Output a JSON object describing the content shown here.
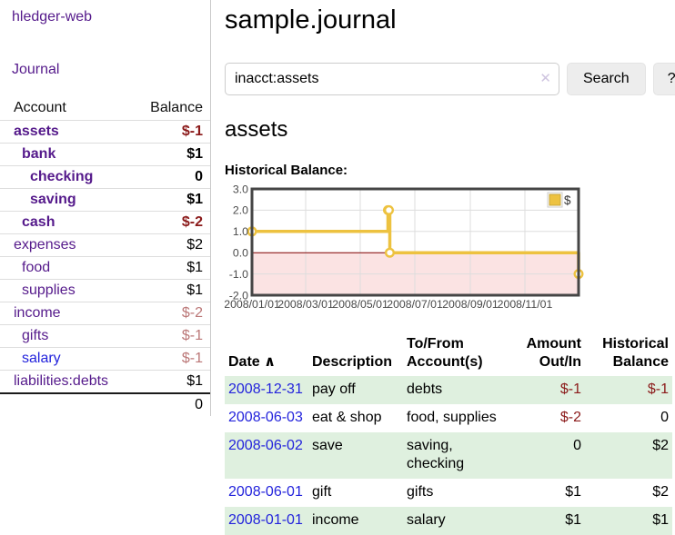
{
  "app": {
    "brand": "hledger-web",
    "nav": {
      "journal": "Journal"
    }
  },
  "colors": {
    "purple_link": "#551A8B",
    "blue_link": "#2323DC",
    "negative_dark": "#8B1A1A",
    "negative_light": "#BB7777",
    "row_green": "#dff0df",
    "chart_line": "#EDC240"
  },
  "sidebar": {
    "header": {
      "account": "Account",
      "balance": "Balance"
    },
    "accounts": [
      {
        "name": "assets",
        "depth": 1,
        "bold": true,
        "link_color": "purple",
        "balance": "$-1",
        "balance_class": "neg-dark"
      },
      {
        "name": "bank",
        "depth": 2,
        "bold": true,
        "link_color": "purple",
        "balance": "$1",
        "balance_class": ""
      },
      {
        "name": "checking",
        "depth": 3,
        "bold": true,
        "link_color": "purple",
        "balance": "0",
        "balance_class": ""
      },
      {
        "name": "saving",
        "depth": 3,
        "bold": true,
        "link_color": "purple",
        "balance": "$1",
        "balance_class": ""
      },
      {
        "name": "cash",
        "depth": 2,
        "bold": true,
        "link_color": "purple",
        "balance": "$-2",
        "balance_class": "neg-dark"
      },
      {
        "name": "expenses",
        "depth": 1,
        "bold": false,
        "link_color": "purple",
        "balance": "$2",
        "balance_class": ""
      },
      {
        "name": "food",
        "depth": 2,
        "bold": false,
        "link_color": "purple",
        "balance": "$1",
        "balance_class": ""
      },
      {
        "name": "supplies",
        "depth": 2,
        "bold": false,
        "link_color": "purple",
        "balance": "$1",
        "balance_class": ""
      },
      {
        "name": "income",
        "depth": 1,
        "bold": false,
        "link_color": "purple",
        "balance": "$-2",
        "balance_class": "neg-light"
      },
      {
        "name": "gifts",
        "depth": 2,
        "bold": false,
        "link_color": "purple",
        "balance": "$-1",
        "balance_class": "neg-light"
      },
      {
        "name": "salary",
        "depth": 2,
        "bold": false,
        "link_color": "blue",
        "balance": "$-1",
        "balance_class": "neg-light"
      },
      {
        "name": "liabilities:debts",
        "depth": 1,
        "bold": false,
        "link_color": "purple",
        "balance": "$1",
        "balance_class": ""
      }
    ],
    "total": "0"
  },
  "main": {
    "title": "sample.journal",
    "search": {
      "value": "inacct:assets",
      "clear": "✕",
      "submit": "Search",
      "help": "?"
    },
    "account_heading": "assets",
    "chart_title": "Historical Balance:"
  },
  "chart_data": {
    "type": "line",
    "step": true,
    "title": "Historical Balance",
    "legend": {
      "label": "$",
      "position": "top-right"
    },
    "series": [
      {
        "name": "$",
        "color": "#EDC240",
        "points": [
          {
            "x": "2008-01-01",
            "y": 1
          },
          {
            "x": "2008-06-01",
            "y": 2
          },
          {
            "x": "2008-06-02",
            "y": 2
          },
          {
            "x": "2008-06-03",
            "y": 0
          },
          {
            "x": "2008-12-31",
            "y": -1
          }
        ]
      }
    ],
    "x_range": [
      "2008-01-01",
      "2008-12-31"
    ],
    "x_ticks": [
      "2008/01/01",
      "2008/03/01",
      "2008/05/01",
      "2008/07/01",
      "2008/09/01",
      "2008/11/01"
    ],
    "y_ticks": [
      3,
      2,
      1,
      0,
      -1,
      -2
    ],
    "ylim": [
      -2,
      3
    ],
    "grid": true,
    "grid_color": "#dddddd",
    "negative_region_color": "#fbe3e3",
    "zero_line_color": "#800000",
    "border_color": "#454545",
    "tick_label_color": "#4a4a4a"
  },
  "register": {
    "columns": {
      "date": "Date",
      "description": "Description",
      "accounts": "To/From Account(s)",
      "amount": "Amount Out/In",
      "balance": "Historical Balance"
    },
    "sort_icon": "∧",
    "rows": [
      {
        "date": "2008-12-31",
        "description": "pay off",
        "accounts": "debts",
        "amount": "$-1",
        "amount_class": "neg-dark",
        "balance": "$-1",
        "balance_class": "neg-dark"
      },
      {
        "date": "2008-06-03",
        "description": "eat & shop",
        "accounts": "food, supplies",
        "amount": "$-2",
        "amount_class": "neg-dark",
        "balance": "0",
        "balance_class": ""
      },
      {
        "date": "2008-06-02",
        "description": "save",
        "accounts": "saving, checking",
        "amount": "0",
        "amount_class": "",
        "balance": "$2",
        "balance_class": ""
      },
      {
        "date": "2008-06-01",
        "description": "gift",
        "accounts": "gifts",
        "amount": "$1",
        "amount_class": "",
        "balance": "$2",
        "balance_class": ""
      },
      {
        "date": "2008-01-01",
        "description": "income",
        "accounts": "salary",
        "amount": "$1",
        "amount_class": "",
        "balance": "$1",
        "balance_class": ""
      }
    ]
  }
}
